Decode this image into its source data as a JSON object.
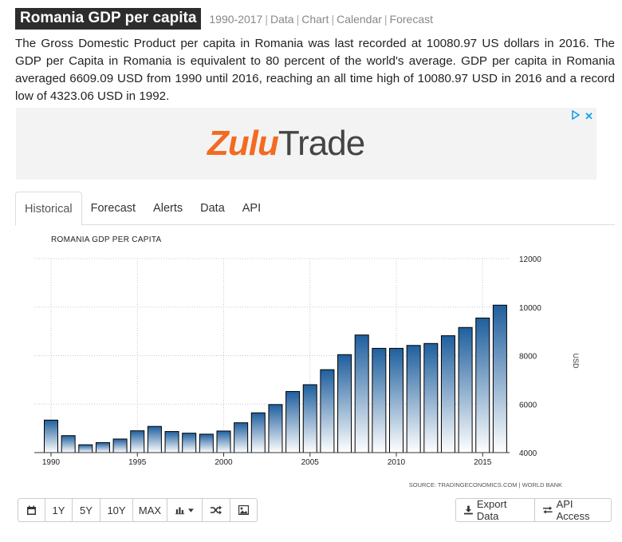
{
  "header": {
    "title": "Romania GDP per capita",
    "links": [
      "1990-2017",
      "Data",
      "Chart",
      "Calendar",
      "Forecast"
    ]
  },
  "description": "The Gross Domestic Product per capita in Romania was last recorded at 10080.97 US dollars in 2016. The GDP per Capita in Romania is equivalent to 80 percent of the world's average. GDP per capita in Romania averaged 6609.09 USD from 1990 until 2016, reaching an all time high of 10080.97 USD in 2016 and a record low of 4323.06 USD in 1992.",
  "ad": {
    "logo_part1": "Zulu",
    "logo_part2": "Trade",
    "adchoices_icon": "play-triangle-icon",
    "close_label": "✕"
  },
  "tabs": [
    "Historical",
    "Forecast",
    "Alerts",
    "Data",
    "API"
  ],
  "toolbar": {
    "left": [
      {
        "name": "calendar-button",
        "icon": "calendar-icon",
        "label": ""
      },
      {
        "name": "range-1y-button",
        "icon": "",
        "label": "1Y"
      },
      {
        "name": "range-5y-button",
        "icon": "",
        "label": "5Y"
      },
      {
        "name": "range-10y-button",
        "icon": "",
        "label": "10Y"
      },
      {
        "name": "range-max-button",
        "icon": "",
        "label": "MAX"
      },
      {
        "name": "chart-type-button",
        "icon": "bar-chart-icon",
        "label": ""
      },
      {
        "name": "compare-button",
        "icon": "shuffle-icon",
        "label": ""
      },
      {
        "name": "image-button",
        "icon": "image-icon",
        "label": ""
      }
    ],
    "export_label": "Export Data",
    "api_label": "API Access"
  },
  "chart_data": {
    "type": "bar",
    "title": "ROMANIA GDP PER CAPITA",
    "ylabel": "USD",
    "source": "SOURCE: TRADINGECONOMICS.COM | WORLD BANK",
    "categories": [
      1990,
      1991,
      1992,
      1993,
      1994,
      1995,
      1996,
      1997,
      1998,
      1999,
      2000,
      2001,
      2002,
      2003,
      2004,
      2005,
      2006,
      2007,
      2008,
      2009,
      2010,
      2011,
      2012,
      2013,
      2014,
      2015,
      2016
    ],
    "values": [
      5340,
      4700,
      4323.06,
      4410,
      4560,
      4900,
      5080,
      4870,
      4800,
      4760,
      4890,
      5230,
      5640,
      5980,
      6520,
      6800,
      7420,
      8040,
      8850,
      8300,
      8300,
      8420,
      8500,
      8820,
      9160,
      9550,
      10080.97
    ],
    "xticks": [
      1990,
      1995,
      2000,
      2005,
      2010,
      2015
    ],
    "yticks": [
      4000,
      6000,
      8000,
      10000,
      12000
    ],
    "ylim": [
      4000,
      12000
    ],
    "colors": {
      "bar_top": "#1f5f9e",
      "bar_bottom": "#ffffff",
      "bar_stroke": "#000000",
      "grid": "#c8c8c8"
    }
  }
}
